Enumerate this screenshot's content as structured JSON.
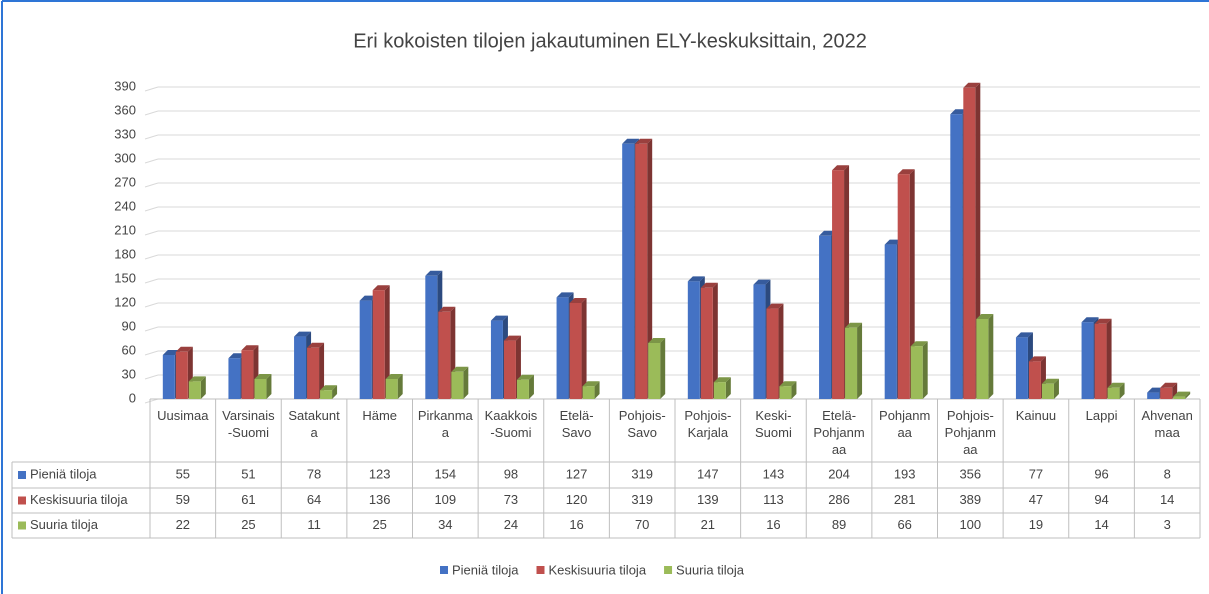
{
  "chart_data": {
    "type": "bar3d",
    "title": "Eri kokoisten tilojen jakautuminen ELY-keskuksittain, 2022",
    "categories": [
      "Uusimaa",
      "Varsinais-Suomi",
      "Satakunta",
      "Häme",
      "Pirkanmaa",
      "Kaakkois-Suomi",
      "Etelä-Savo",
      "Pohjois-Savo",
      "Pohjois-Karjala",
      "Keski-Suomi",
      "Etelä-Pohjanmaa",
      "Pohjanmaa",
      "Pohjois-Pohjanmaa",
      "Kainuu",
      "Lappi",
      "Ahvenanmaa"
    ],
    "series": [
      {
        "name": "Pieniä tiloja",
        "color": "#4472c4",
        "values": [
          55,
          51,
          78,
          123,
          154,
          98,
          127,
          319,
          147,
          143,
          204,
          193,
          356,
          77,
          96,
          8
        ]
      },
      {
        "name": "Keskisuuria tiloja",
        "color": "#c0504d",
        "values": [
          59,
          61,
          64,
          136,
          109,
          73,
          120,
          319,
          139,
          113,
          286,
          281,
          389,
          47,
          94,
          14
        ]
      },
      {
        "name": "Suuria tiloja",
        "color": "#9bbb59",
        "values": [
          22,
          25,
          11,
          25,
          34,
          24,
          16,
          70,
          21,
          16,
          89,
          66,
          100,
          19,
          14,
          3
        ]
      }
    ],
    "ylim": [
      0,
      390
    ],
    "yticks": [
      0,
      30,
      60,
      90,
      120,
      150,
      180,
      210,
      240,
      270,
      300,
      330,
      360,
      390
    ],
    "grid": true,
    "legend": "bottom"
  }
}
